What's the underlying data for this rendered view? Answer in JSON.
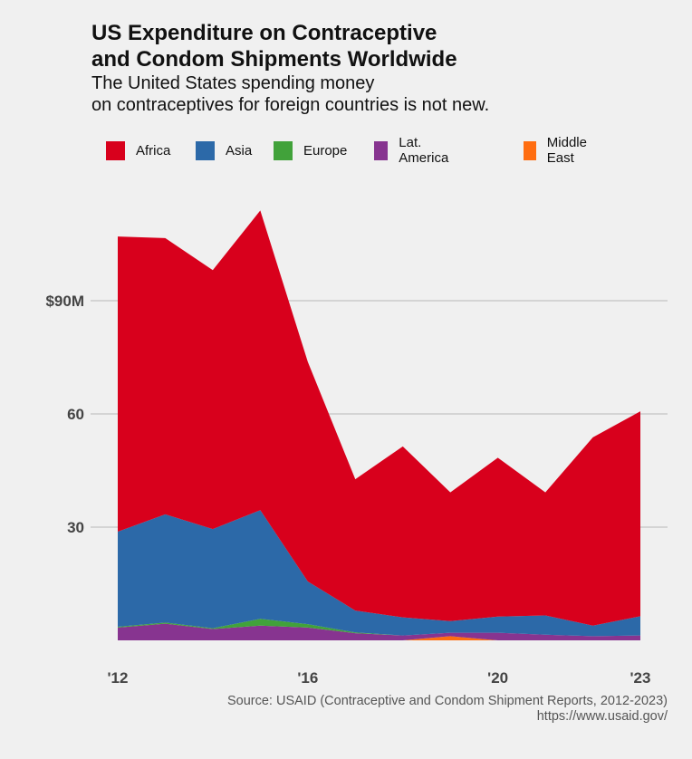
{
  "title_lines": [
    "US Expenditure on Contraceptive",
    "and Condom Shipments Worldwide"
  ],
  "subtitle_lines": [
    "The United States spending money",
    "on contraceptives for foreign countries is not new."
  ],
  "source_lines": [
    "Source: USAID (Contraceptive and Condom Shipment Reports, 2012-2023)",
    "https://www.usaid.gov/"
  ],
  "chart_data": {
    "type": "area",
    "stacked": true,
    "x": [
      2012,
      2013,
      2014,
      2015,
      2016,
      2017,
      2018,
      2019,
      2020,
      2021,
      2022,
      2023
    ],
    "x_ticks": [
      {
        "value": 2012,
        "label": "'12"
      },
      {
        "value": 2016,
        "label": "'16"
      },
      {
        "value": 2020,
        "label": "'20"
      },
      {
        "value": 2023,
        "label": "'23"
      }
    ],
    "y_ticks": [
      {
        "value": 30,
        "label": "30"
      },
      {
        "value": 60,
        "label": "60"
      },
      {
        "value": 90,
        "label": "$90M"
      }
    ],
    "ylim": [
      0,
      115
    ],
    "grid": "horizontal",
    "legend_position": "top",
    "series": [
      {
        "name": "Middle East",
        "color": "#ff6d10",
        "values": [
          0,
          0,
          0,
          0,
          0,
          0,
          0,
          1.1,
          0,
          0,
          0,
          0
        ]
      },
      {
        "name": "Lat. America",
        "color": "#873490",
        "values": [
          3.4,
          4.4,
          3.0,
          3.9,
          3.4,
          1.9,
          1.3,
          0.9,
          2.0,
          1.5,
          1.1,
          1.3
        ]
      },
      {
        "name": "Europe",
        "color": "#41a23a",
        "values": [
          0.2,
          0.3,
          0.2,
          1.8,
          0.9,
          0.2,
          0,
          0,
          0,
          0,
          0,
          0
        ]
      },
      {
        "name": "Asia",
        "color": "#2c69a8",
        "values": [
          25.2,
          28.7,
          26.3,
          28.8,
          11.3,
          5.8,
          4.8,
          3.1,
          4.3,
          5.1,
          2.8,
          5.1
        ]
      },
      {
        "name": "Africa",
        "color": "#d8001c",
        "values": [
          78.2,
          73.2,
          68.6,
          79.4,
          58.2,
          34.8,
          45.3,
          34.1,
          42.1,
          32.6,
          49.9,
          54.3
        ]
      }
    ],
    "legend_order": [
      "Africa",
      "Asia",
      "Europe",
      "Lat. America",
      "Middle East"
    ]
  }
}
